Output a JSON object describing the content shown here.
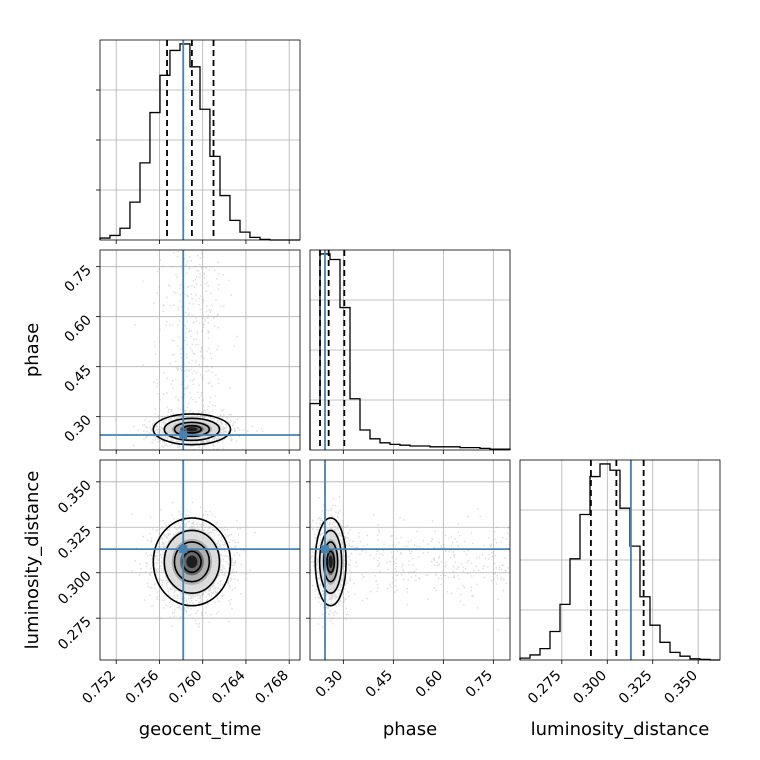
{
  "chart_data": {
    "type": "corner",
    "grid": true,
    "truth_color": "#4682b4",
    "parameters": [
      {
        "name": "geocent_time",
        "label": "geocent_time",
        "range": [
          0.7505,
          0.769
        ],
        "ticks": [
          0.752,
          0.756,
          0.76,
          0.764,
          0.768
        ],
        "tick_labels": [
          "0.752",
          "0.756",
          "0.760",
          "0.764",
          "0.768"
        ],
        "truth": 0.7582,
        "quantiles": [
          0.7567,
          0.759,
          0.761
        ],
        "mean": 0.759,
        "sd": 0.0017
      },
      {
        "name": "phase",
        "label": "phase",
        "range": [
          0.2,
          0.8
        ],
        "ticks": [
          0.3,
          0.45,
          0.6,
          0.75
        ],
        "tick_labels": [
          "0.30",
          "0.45",
          "0.60",
          "0.75"
        ],
        "truth": 0.245,
        "quantiles": [
          0.23,
          0.256,
          0.303
        ],
        "mean": 0.262,
        "sd": 0.022
      },
      {
        "name": "luminosity_distance",
        "label": "luminosity_distance",
        "range": [
          0.252,
          0.362
        ],
        "ticks": [
          0.275,
          0.3,
          0.325,
          0.35
        ],
        "tick_labels": [
          "0.275",
          "0.300",
          "0.325",
          "0.350"
        ],
        "truth": 0.313,
        "quantiles": [
          0.291,
          0.305,
          0.32
        ],
        "mean": 0.306,
        "sd": 0.0115
      }
    ],
    "histograms": [
      {
        "parameter": "geocent_time",
        "bin_edges": [
          0.7505,
          0.75142,
          0.75235,
          0.75327,
          0.7542,
          0.75512,
          0.75605,
          0.75697,
          0.7579,
          0.75882,
          0.75975,
          0.76067,
          0.7616,
          0.76252,
          0.76345,
          0.76437,
          0.7653,
          0.76622,
          0.76715,
          0.76807,
          0.769
        ],
        "counts": [
          3,
          7,
          18,
          58,
          118,
          195,
          252,
          290,
          300,
          265,
          200,
          128,
          68,
          30,
          12,
          4,
          1,
          0,
          0,
          0
        ]
      },
      {
        "parameter": "phase",
        "bin_edges": [
          0.2,
          0.23,
          0.26,
          0.29,
          0.32,
          0.35,
          0.38,
          0.41,
          0.44,
          0.47,
          0.5,
          0.53,
          0.56,
          0.59,
          0.62,
          0.65,
          0.68,
          0.71,
          0.74,
          0.77,
          0.8
        ],
        "counts": [
          58,
          245,
          238,
          178,
          64,
          25,
          14,
          9,
          7,
          6,
          5,
          5,
          4,
          4,
          4,
          3,
          3,
          2,
          1,
          1
        ]
      },
      {
        "parameter": "luminosity_distance",
        "bin_edges": [
          0.252,
          0.2575,
          0.263,
          0.2685,
          0.274,
          0.2795,
          0.285,
          0.2905,
          0.296,
          0.3015,
          0.307,
          0.3125,
          0.318,
          0.3235,
          0.329,
          0.3345,
          0.34,
          0.3455,
          0.351,
          0.3565,
          0.362
        ],
        "counts": [
          3,
          8,
          18,
          45,
          88,
          160,
          230,
          290,
          310,
          300,
          240,
          180,
          100,
          55,
          28,
          12,
          6,
          2,
          1,
          0
        ]
      }
    ]
  }
}
